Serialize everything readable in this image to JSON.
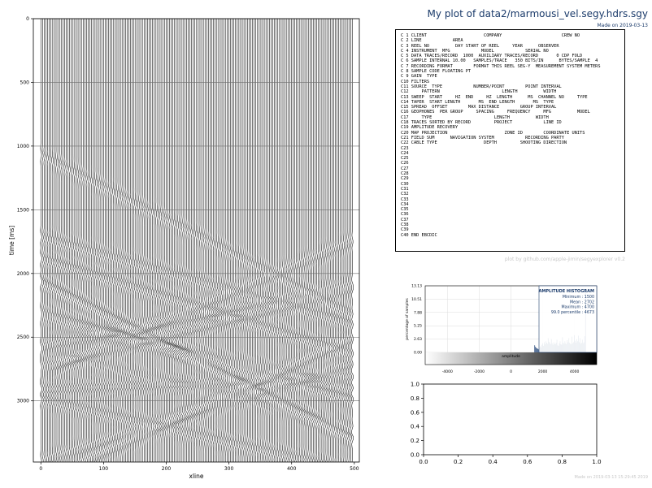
{
  "header": {
    "title": "My plot of data2/marmousi_vel.segy.hdrs.sgy",
    "subtitle": "Made on 2019-03-13"
  },
  "ebcdic": {
    "lines": [
      "C 1 CLIENT                      COMPANY                       CREW NO",
      "C 2 LINE            AREA",
      "C 3 REEL NO          DAY START OF REEL     YEAR      OBSERVER",
      "C 4 INSTRUMENT  MFG            MODEL            SERIAL NO",
      "C 5 DATA TRACES/RECORD  1000  AUXILIARY TRACES/RECORD       0 CDP FOLD",
      "C 6 SAMPLE INTERNAL 10.00   SAMPLES/TRACE   350 BITS/IN      BYTES/SAMPLE  4",
      "C 7 RECORDING FORMAT        FORMAT THIS REEL SEG-Y  MEASUREMENT SYSTEM METERS",
      "C 8 SAMPLE CODE FLOATING PT",
      "C 9 GAIN  TYPE",
      "C10 FILTERS",
      "C11 SOURCE  TYPE            NUMBER/POINT        POINT INTERVAL",
      "C12     PATTERN                        LENGTH          WIDTH",
      "C13 SWEEP  START     HZ  END     HZ  LENGTH      MS  CHANNEL NO     TYPE",
      "C14 TAPER  START LENGTH       MS  END LENGTH       MS  TYPE",
      "C15 SPREAD  OFFSET        MAX DISTANCE        GROUP INTERVAL",
      "C16 GEOPHONES  PER GROUP     SPACING     FREQUENCY     MFG          MODEL",
      "C17     TYPE                        LENGTH          WIDTH",
      "C18 TRACES SORTED BY RECORD         PROJECT            LINE ID",
      "C19 AMPLITUDE RECOVERY",
      "C20 MAP PROJECTION                      ZONE ID        COORDINATE UNITS",
      "C21 FIELD SUM      NAVIGATION SYSTEM            RECORDING PARTY",
      "C22 CABLE TYPE                  DEPTH         SHOOTING DIRECTION",
      "C23",
      "C24",
      "C25",
      "C26",
      "C27",
      "C28",
      "C29",
      "C30",
      "C31",
      "C32",
      "C33",
      "C34",
      "C35",
      "C36",
      "C37",
      "C38",
      "C39",
      "C40 END EBCDIC"
    ]
  },
  "credit": "plot by github.com/apple-jimin/segyexplorer v0.2",
  "timestamp": "Made on 2019-03-13 15:29:45 2019",
  "chart_data": [
    {
      "type": "wiggle",
      "xlabel": "xline",
      "ylabel": "time [ms]",
      "xlim": [
        -12,
        508
      ],
      "ylim": [
        3480,
        0
      ],
      "xticks": [
        0,
        100,
        200,
        300,
        400,
        500
      ],
      "yticks": [
        0,
        500,
        1000,
        1500,
        2000,
        2500,
        3000
      ],
      "trace_count": 185,
      "trace_spacing": 2.7,
      "grid": true
    },
    {
      "type": "histogram",
      "title": "AMPLITUDE HISTOGRAM",
      "stats": [
        "Minimum : 1500",
        "Mean : 2702",
        "Maximum : 4700",
        "99.0 percentile : 4673"
      ],
      "xlabel": "amplitude",
      "ylabel": "percentage of samples",
      "xlim": [
        -5400,
        5400
      ],
      "ylim": [
        0,
        13.13
      ],
      "xticks": [
        -4000,
        -2000,
        0,
        2000,
        4000
      ],
      "yticks": [
        0.0,
        2.63,
        5.25,
        7.88,
        10.51,
        13.13
      ],
      "ytick_labels": [
        "0.00",
        "2.63",
        "5.25",
        "7.88",
        "10.51",
        "13.13"
      ],
      "bins_x": [
        1500,
        1550,
        1600,
        1650,
        1700,
        1750,
        1800,
        1850,
        1900,
        1950,
        2000,
        2050,
        2100,
        2150,
        2200,
        2250,
        2300,
        2350,
        2400,
        2450,
        2500,
        2550,
        2600,
        2650,
        2700,
        2750,
        2800,
        2850,
        2900,
        2950,
        3000,
        3050,
        3100,
        3150,
        3200,
        3250,
        3300,
        3350,
        3400,
        3450,
        3500,
        3550,
        3600,
        3650,
        3700,
        3750,
        3800,
        3850,
        3900,
        3950,
        4000,
        4050,
        4100,
        4150,
        4200,
        4250,
        4300,
        4350,
        4400,
        4450,
        4500,
        4550,
        4600,
        4650,
        4700
      ],
      "bins_y": [
        1.4,
        1.1,
        0.9,
        0.8,
        0.7,
        0.6,
        0.9,
        1.2,
        1.0,
        1.5,
        1.8,
        1.3,
        2.0,
        1.6,
        2.2,
        1.9,
        1.7,
        2.8,
        2.1,
        1.9,
        1.6,
        2.6,
        1.8,
        1.5,
        2.0,
        1.7,
        1.6,
        1.9,
        2.5,
        1.4,
        1.3,
        1.8,
        2.2,
        1.6,
        1.5,
        3.0,
        1.9,
        1.7,
        2.2,
        1.8,
        1.6,
        2.4,
        2.0,
        2.8,
        1.9,
        1.7,
        1.6,
        3.1,
        1.8,
        2.0,
        3.4,
        2.3,
        1.9,
        2.6,
        2.2,
        3.3,
        2.0,
        2.8,
        1.7,
        1.9,
        2.5,
        1.8,
        2.0,
        3.2,
        12.5
      ],
      "colorbar_range": [
        -5400,
        5400
      ],
      "grid": true
    },
    {
      "type": "empty",
      "xlim": [
        0,
        1
      ],
      "ylim": [
        0,
        1
      ],
      "xticks": [
        0.0,
        0.2,
        0.4,
        0.6,
        0.8,
        1.0
      ],
      "yticks": [
        0.0,
        0.2,
        0.4,
        0.6,
        0.8,
        1.0
      ],
      "tick_labels": [
        "0.0",
        "0.2",
        "0.4",
        "0.6",
        "0.8",
        "1.0"
      ]
    }
  ]
}
